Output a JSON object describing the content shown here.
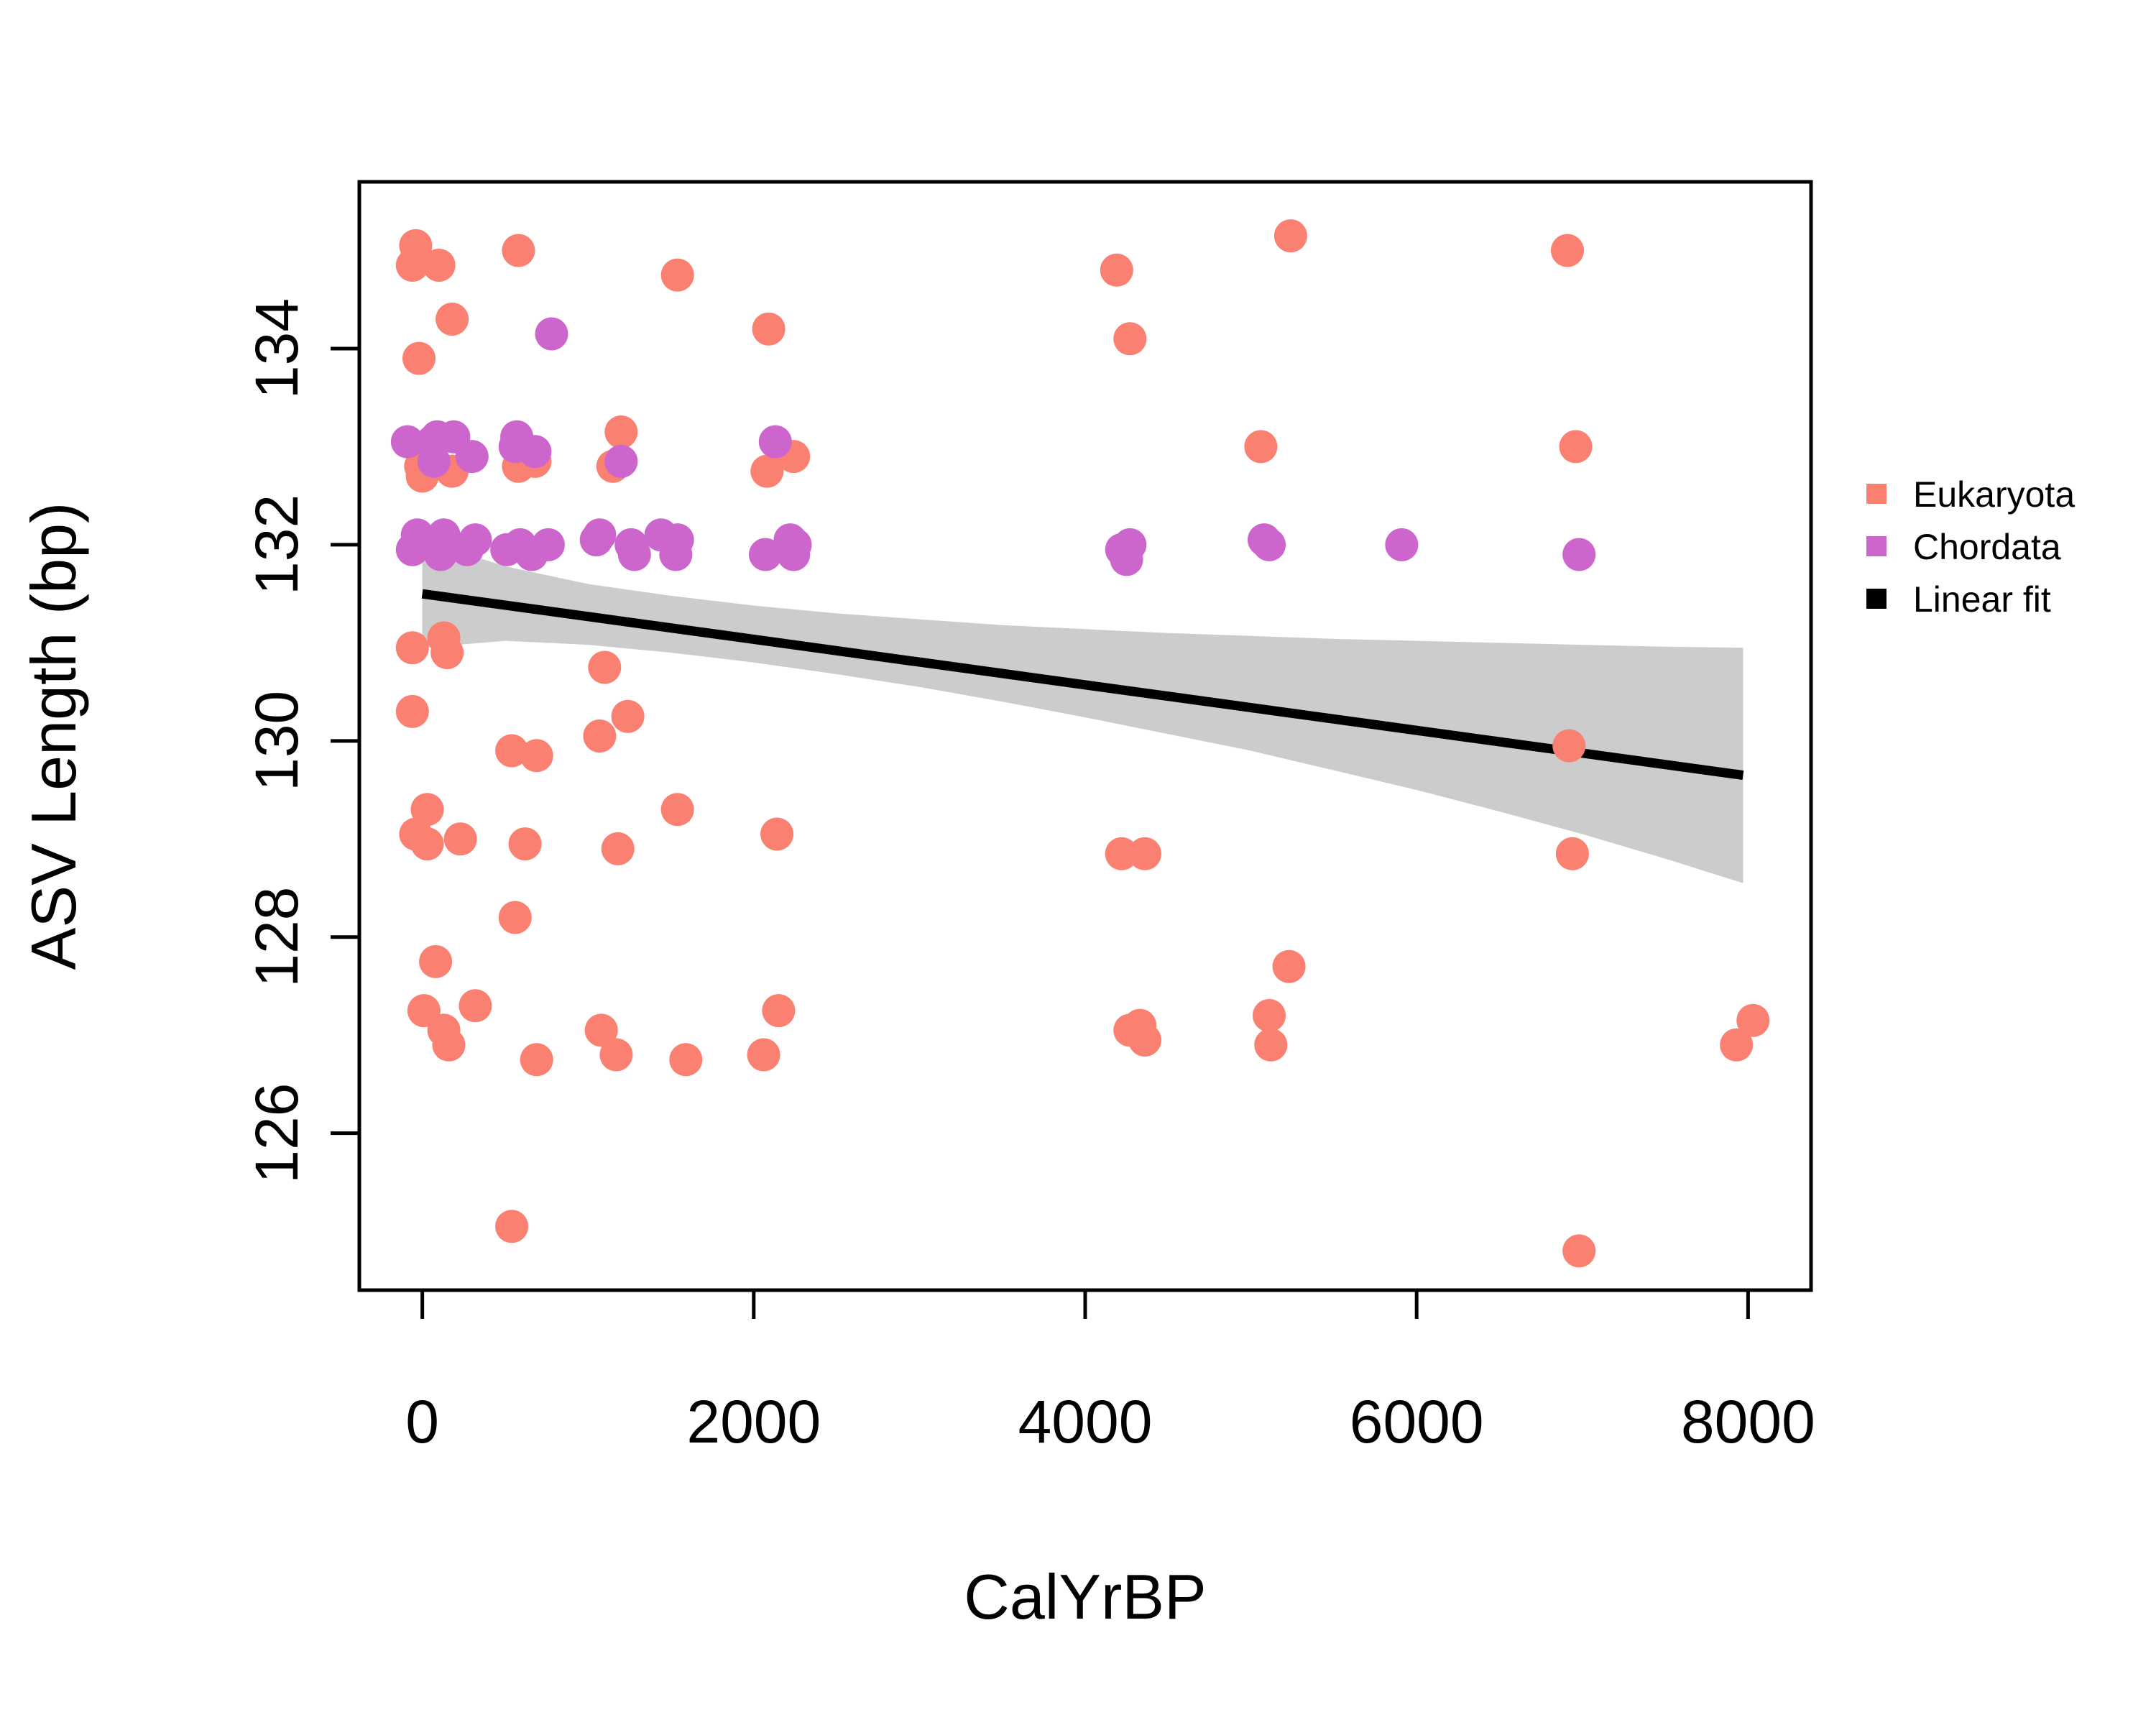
{
  "chart_data": {
    "type": "scatter",
    "xlabel": "CalYrBP",
    "ylabel": "ASV Length (bp)",
    "xlim": [
      -380,
      8380
    ],
    "ylim": [
      124.4,
      135.7
    ],
    "xticks": [
      0,
      2000,
      4000,
      6000,
      8000
    ],
    "yticks": [
      126,
      128,
      130,
      132,
      134
    ],
    "grid": false,
    "legend_position": "right",
    "series": [
      {
        "name": "Eukaryota",
        "color": "#FA8072",
        "points": [
          [
            -40,
            135.05
          ],
          [
            -60,
            134.85
          ],
          [
            100,
            134.85
          ],
          [
            580,
            135.0
          ],
          [
            1540,
            134.75
          ],
          [
            4190,
            134.8
          ],
          [
            5240,
            135.15
          ],
          [
            6910,
            135.0
          ],
          [
            180,
            134.3
          ],
          [
            2090,
            134.2
          ],
          [
            4270,
            134.1
          ],
          [
            -20,
            133.9
          ],
          [
            1200,
            133.15
          ],
          [
            5060,
            133.0
          ],
          [
            6960,
            133.0
          ],
          [
            2240,
            132.9
          ],
          [
            580,
            132.8
          ],
          [
            680,
            132.85
          ],
          [
            -10,
            132.8
          ],
          [
            0,
            132.7
          ],
          [
            180,
            132.75
          ],
          [
            1150,
            132.8
          ],
          [
            2080,
            132.75
          ],
          [
            -60,
            130.95
          ],
          [
            130,
            131.05
          ],
          [
            150,
            130.9
          ],
          [
            -60,
            130.3
          ],
          [
            1100,
            130.75
          ],
          [
            1240,
            130.25
          ],
          [
            1070,
            130.05
          ],
          [
            540,
            129.9
          ],
          [
            690,
            129.85
          ],
          [
            6920,
            129.95
          ],
          [
            30,
            129.3
          ],
          [
            -40,
            129.05
          ],
          [
            30,
            128.95
          ],
          [
            230,
            129.0
          ],
          [
            620,
            128.95
          ],
          [
            1180,
            128.9
          ],
          [
            1540,
            129.3
          ],
          [
            2140,
            129.05
          ],
          [
            4220,
            128.85
          ],
          [
            4360,
            128.85
          ],
          [
            6940,
            128.85
          ],
          [
            560,
            128.2
          ],
          [
            80,
            127.75
          ],
          [
            5230,
            127.7
          ],
          [
            10,
            127.25
          ],
          [
            130,
            127.05
          ],
          [
            160,
            126.9
          ],
          [
            320,
            127.3
          ],
          [
            1080,
            127.05
          ],
          [
            2150,
            127.25
          ],
          [
            4270,
            127.05
          ],
          [
            4330,
            127.1
          ],
          [
            4360,
            126.95
          ],
          [
            5110,
            127.2
          ],
          [
            5120,
            126.9
          ],
          [
            8030,
            127.15
          ],
          [
            7930,
            126.9
          ],
          [
            690,
            126.75
          ],
          [
            1170,
            126.8
          ],
          [
            1590,
            126.75
          ],
          [
            2060,
            126.8
          ],
          [
            540,
            125.05
          ],
          [
            6980,
            124.8
          ]
        ]
      },
      {
        "name": "Chordata",
        "color": "#CC66CC",
        "points": [
          [
            780,
            134.15
          ],
          [
            -90,
            133.05
          ],
          [
            60,
            133.05
          ],
          [
            90,
            133.1
          ],
          [
            190,
            133.1
          ],
          [
            70,
            132.85
          ],
          [
            300,
            132.9
          ],
          [
            570,
            133.1
          ],
          [
            560,
            133.0
          ],
          [
            680,
            132.95
          ],
          [
            1200,
            132.85
          ],
          [
            2130,
            133.05
          ],
          [
            -30,
            132.1
          ],
          [
            130,
            132.1
          ],
          [
            320,
            132.05
          ],
          [
            -60,
            131.95
          ],
          [
            110,
            131.9
          ],
          [
            270,
            131.95
          ],
          [
            510,
            131.95
          ],
          [
            590,
            132.0
          ],
          [
            660,
            131.9
          ],
          [
            760,
            132.0
          ],
          [
            1070,
            132.1
          ],
          [
            1050,
            132.05
          ],
          [
            1260,
            132.0
          ],
          [
            1280,
            131.9
          ],
          [
            1440,
            132.1
          ],
          [
            1540,
            132.05
          ],
          [
            1530,
            131.9
          ],
          [
            2070,
            131.9
          ],
          [
            2220,
            132.05
          ],
          [
            2250,
            132.0
          ],
          [
            2240,
            131.9
          ],
          [
            4220,
            131.95
          ],
          [
            4270,
            132.0
          ],
          [
            4250,
            131.85
          ],
          [
            5080,
            132.05
          ],
          [
            5110,
            132.0
          ],
          [
            5910,
            132.0
          ],
          [
            6980,
            131.9
          ]
        ]
      }
    ],
    "fit": {
      "name": "Linear fit",
      "color": "#000000",
      "x": [
        0,
        7970
      ],
      "y": [
        131.5,
        129.65
      ],
      "band_color": "#CCCCCC",
      "band_x": [
        0,
        500,
        1000,
        1500,
        2000,
        2500,
        3000,
        3500,
        4000,
        4500,
        5000,
        5500,
        6000,
        6500,
        7000,
        7500,
        7970
      ],
      "band_upper": [
        132.05,
        131.78,
        131.6,
        131.48,
        131.38,
        131.3,
        131.24,
        131.18,
        131.14,
        131.1,
        131.07,
        131.04,
        131.02,
        131.0,
        130.98,
        130.96,
        130.95
      ],
      "band_lower": [
        130.95,
        131.02,
        130.98,
        130.9,
        130.8,
        130.68,
        130.55,
        130.4,
        130.24,
        130.07,
        129.9,
        129.7,
        129.5,
        129.28,
        129.05,
        128.8,
        128.55
      ]
    },
    "legend": [
      {
        "label": "Eukaryota",
        "color": "#FA8072"
      },
      {
        "label": "Chordata",
        "color": "#CC66CC"
      },
      {
        "label": "Linear fit",
        "color": "#000000"
      }
    ]
  }
}
